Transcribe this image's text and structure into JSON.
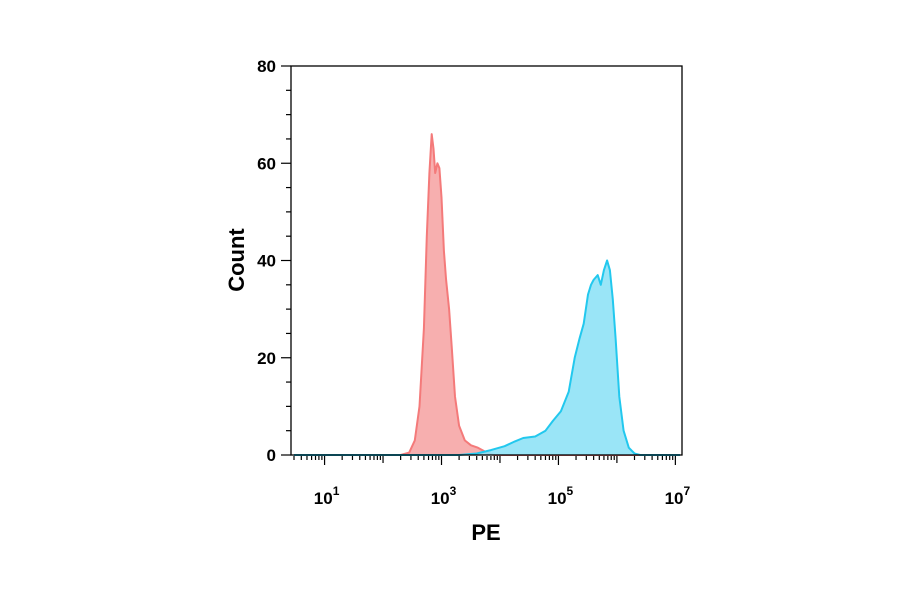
{
  "chart_data": {
    "type": "area",
    "title": "",
    "xlabel": "PE",
    "ylabel": "Count",
    "x_scale": "log10",
    "xlim": [
      3,
      12000000
    ],
    "ylim": [
      0,
      80
    ],
    "x_ticks": [
      {
        "value": 10,
        "base": "10",
        "exp": "1"
      },
      {
        "value": 1000,
        "base": "10",
        "exp": "3"
      },
      {
        "value": 100000,
        "base": "10",
        "exp": "5"
      },
      {
        "value": 10000000,
        "base": "10",
        "exp": "7"
      }
    ],
    "y_ticks": [
      0,
      20,
      40,
      60,
      80
    ],
    "grid": false,
    "legend": "none",
    "series": [
      {
        "color": "#f47a7a",
        "fill": "#f6a6a6",
        "points": [
          [
            3,
            0
          ],
          [
            200,
            0
          ],
          [
            280,
            0.5
          ],
          [
            350,
            3
          ],
          [
            420,
            10
          ],
          [
            500,
            26
          ],
          [
            560,
            45
          ],
          [
            620,
            58
          ],
          [
            680,
            66
          ],
          [
            730,
            63
          ],
          [
            780,
            58
          ],
          [
            850,
            60
          ],
          [
            920,
            59
          ],
          [
            1000,
            53
          ],
          [
            1100,
            42
          ],
          [
            1200,
            36
          ],
          [
            1350,
            30
          ],
          [
            1500,
            22
          ],
          [
            1700,
            12
          ],
          [
            2000,
            6
          ],
          [
            2500,
            3
          ],
          [
            3200,
            2
          ],
          [
            4200,
            1.5
          ],
          [
            6000,
            0.5
          ],
          [
            8000,
            0
          ],
          [
            12000000,
            0
          ]
        ]
      },
      {
        "color": "#22c8ee",
        "fill": "#8fe2f6",
        "points": [
          [
            3,
            0
          ],
          [
            2000,
            0
          ],
          [
            4000,
            0.3
          ],
          [
            7000,
            1
          ],
          [
            12000,
            1.8
          ],
          [
            18000,
            2.8
          ],
          [
            25000,
            3.5
          ],
          [
            40000,
            3.8
          ],
          [
            60000,
            5
          ],
          [
            80000,
            7
          ],
          [
            110000,
            9
          ],
          [
            150000,
            13
          ],
          [
            190000,
            20
          ],
          [
            230000,
            24
          ],
          [
            270000,
            27
          ],
          [
            320000,
            33
          ],
          [
            360000,
            35
          ],
          [
            400000,
            36
          ],
          [
            470000,
            37
          ],
          [
            530000,
            35
          ],
          [
            600000,
            38
          ],
          [
            680000,
            40
          ],
          [
            760000,
            38
          ],
          [
            850000,
            32
          ],
          [
            950000,
            24
          ],
          [
            1100000,
            12
          ],
          [
            1300000,
            5
          ],
          [
            1600000,
            1.5
          ],
          [
            2000000,
            0.3
          ],
          [
            2500000,
            0
          ],
          [
            12000000,
            0
          ]
        ]
      }
    ]
  }
}
